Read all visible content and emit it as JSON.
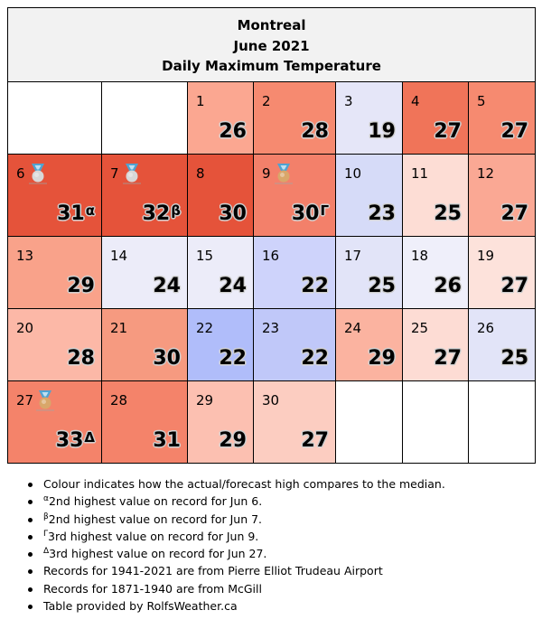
{
  "header": {
    "city": "Montreal",
    "month": "June 2021",
    "subtitle": "Daily Maximum Temperature"
  },
  "colors": {
    "header_bg": "#f2f2f2",
    "border": "#000000",
    "silver_medal": "#d8d8d8",
    "bronze_medal": "#d9a76a",
    "medal_ribbon": "#4fa3d1"
  },
  "weeks": [
    [
      {
        "empty": true
      },
      {
        "empty": true
      },
      {
        "day": "1",
        "temp": "26",
        "bg": "#fba791"
      },
      {
        "day": "2",
        "temp": "28",
        "bg": "#f68a70"
      },
      {
        "day": "3",
        "temp": "19",
        "bg": "#e5e6f8"
      },
      {
        "day": "4",
        "temp": "27",
        "bg": "#f07459"
      },
      {
        "day": "5",
        "temp": "27",
        "bg": "#f68a70"
      }
    ],
    [
      {
        "day": "6",
        "temp": "31",
        "mark": "α",
        "medal": "silver",
        "bg": "#e5533a"
      },
      {
        "day": "7",
        "temp": "32",
        "mark": "β",
        "medal": "silver",
        "bg": "#e5533a"
      },
      {
        "day": "8",
        "temp": "30",
        "bg": "#e5533a"
      },
      {
        "day": "9",
        "temp": "30",
        "mark": "Γ",
        "medal": "bronze",
        "bg": "#f3806a"
      },
      {
        "day": "10",
        "temp": "23",
        "bg": "#d6dbf8"
      },
      {
        "day": "11",
        "temp": "25",
        "bg": "#fdddd5"
      },
      {
        "day": "12",
        "temp": "27",
        "bg": "#faa894"
      }
    ],
    [
      {
        "day": "13",
        "temp": "29",
        "bg": "#f9a28a"
      },
      {
        "day": "14",
        "temp": "24",
        "bg": "#ececf9"
      },
      {
        "day": "15",
        "temp": "24",
        "bg": "#ececf9"
      },
      {
        "day": "16",
        "temp": "22",
        "bg": "#ced3fb"
      },
      {
        "day": "17",
        "temp": "25",
        "bg": "#e2e4f8"
      },
      {
        "day": "18",
        "temp": "26",
        "bg": "#efeffa"
      },
      {
        "day": "19",
        "temp": "27",
        "bg": "#fde2db"
      }
    ],
    [
      {
        "day": "20",
        "temp": "28",
        "bg": "#fcb8a7"
      },
      {
        "day": "21",
        "temp": "30",
        "bg": "#f69a80"
      },
      {
        "day": "22",
        "temp": "22",
        "bg": "#b0bdfa"
      },
      {
        "day": "23",
        "temp": "22",
        "bg": "#c0c8f9"
      },
      {
        "day": "24",
        "temp": "29",
        "bg": "#fbb3a0"
      },
      {
        "day": "25",
        "temp": "27",
        "bg": "#fddcd4"
      },
      {
        "day": "26",
        "temp": "25",
        "bg": "#e2e4f8"
      }
    ],
    [
      {
        "day": "27",
        "temp": "33",
        "mark": "Δ",
        "medal": "bronze",
        "bg": "#f4836a"
      },
      {
        "day": "28",
        "temp": "31",
        "bg": "#f4836a"
      },
      {
        "day": "29",
        "temp": "29",
        "bg": "#fcc0b1"
      },
      {
        "day": "30",
        "temp": "27",
        "bg": "#fccdc1"
      },
      {
        "empty": true
      },
      {
        "empty": true
      },
      {
        "empty": true
      }
    ]
  ],
  "notes": [
    {
      "mark": "",
      "text": "Colour indicates how the actual/forecast high compares to the median."
    },
    {
      "mark": "α",
      "text": "2nd highest value on record for Jun 6."
    },
    {
      "mark": "β",
      "text": "2nd highest value on record for Jun 7."
    },
    {
      "mark": "Γ",
      "text": "3rd highest value on record for Jun 9."
    },
    {
      "mark": "Δ",
      "text": "3rd highest value on record for Jun 27."
    },
    {
      "mark": "",
      "text": "Records for 1941-2021 are from Pierre Elliot Trudeau Airport"
    },
    {
      "mark": "",
      "text": "Records for 1871-1940 are from McGill"
    },
    {
      "mark": "",
      "text": "Table provided by RolfsWeather.ca"
    }
  ]
}
